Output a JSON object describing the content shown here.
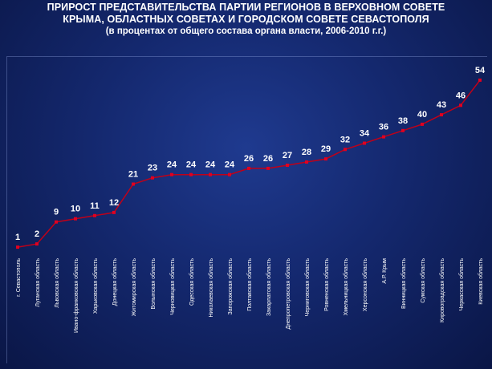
{
  "title": {
    "line1": "ПРИРОСТ ПРЕДСТАВИТЕЛЬСТВА ПАРТИИ РЕГИОНОВ В ВЕРХОВНОМ СОВЕТЕ",
    "line2": "КРЫМА, ОБЛАСТНЫХ СОВЕТАХ И ГОРОДСКОМ СОВЕТЕ СЕВАСТОПОЛЯ",
    "subtitle": "(в процентах от общего состава органа власти, 2006-2010 г.г.)"
  },
  "colors": {
    "line": "#c00018",
    "marker": "#e00020",
    "text": "#ffffff",
    "background": "#14286e"
  },
  "chart_data": {
    "type": "line",
    "title": "ПРИРОСТ ПРЕДСТАВИТЕЛЬСТВА ПАРТИИ РЕГИОНОВ В ВЕРХОВНОМ СОВЕТЕ КРЫМА, ОБЛАСТНЫХ СОВЕТАХ И ГОРОДСКОМ СОВЕТЕ СЕВАСТОПОЛЯ",
    "subtitle": "(в процентах от общего состава органа власти, 2006-2010 г.г.)",
    "categories": [
      "г. Севастополь",
      "Луганская область",
      "Львовская область",
      "Ивано-франковская область",
      "Харьковская область",
      "Донецкая область",
      "Житомирская область",
      "Волынская область",
      "Черновицкая область",
      "Одесская область",
      "Николаевская область",
      "Запорожская область",
      "Полтавская область",
      "Закарпатская область",
      "Днепропетровская область",
      "Черниговская область",
      "Ровненская область",
      "Хмельницкая область",
      "Херсонская область",
      "А.Р. Крым",
      "Винницкая область",
      "Сумская область",
      "Кировоградская область",
      "Черкасская область",
      "Киевская область"
    ],
    "values": [
      1,
      2,
      9,
      10,
      11,
      12,
      21,
      23,
      24,
      24,
      24,
      24,
      26,
      26,
      27,
      28,
      29,
      32,
      34,
      36,
      38,
      40,
      43,
      46,
      54
    ],
    "data_labels": [
      "1",
      "2",
      "9",
      "10",
      "11",
      "12",
      "21",
      "23",
      "24",
      "24",
      "24",
      "24",
      "26",
      "26",
      "27",
      "28",
      "29",
      "32",
      "34",
      "36",
      "38",
      "40",
      "43",
      "46",
      "54"
    ],
    "ylim": [
      0,
      56
    ],
    "grid": false,
    "legend": "none"
  }
}
